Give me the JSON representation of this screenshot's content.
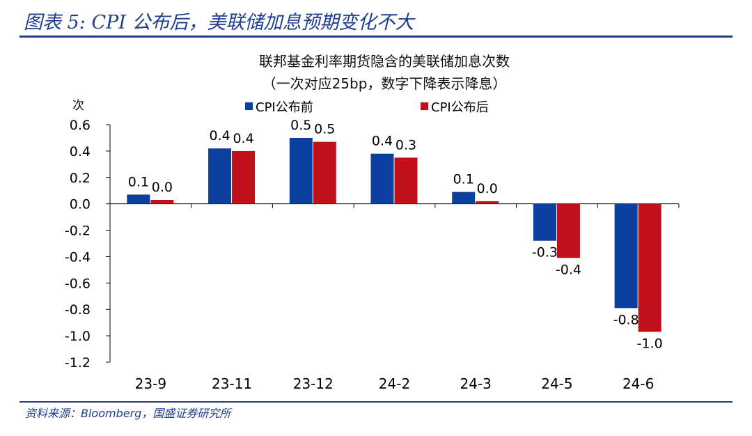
{
  "figure_title": "图表 5: CPI 公布后，美联储加息预期变化不大",
  "source_note": "资料来源：Bloomberg，国盛证券研究所",
  "chart_data": {
    "type": "bar",
    "title_line1": "联邦基金利率期货隐含的美联储加息次数",
    "title_line2": "（一次对应25bp，数字下降表示降息）",
    "ylabel": "次",
    "xlabel": "",
    "categories": [
      "23-9",
      "23-11",
      "23-12",
      "24-2",
      "24-3",
      "24-5",
      "24-6"
    ],
    "series": [
      {
        "name": "CPI公布前",
        "color": "#0b3fa0",
        "values": [
          0.07,
          0.42,
          0.5,
          0.38,
          0.09,
          -0.28,
          -0.79
        ],
        "labels": [
          "0.1",
          "0.4",
          "0.5",
          "0.4",
          "0.1",
          "-0.3",
          "-0.8"
        ]
      },
      {
        "name": "CPI公布后",
        "color": "#c0101a",
        "values": [
          0.03,
          0.4,
          0.47,
          0.35,
          0.02,
          -0.41,
          -0.97
        ],
        "labels": [
          "0.0",
          "0.4",
          "0.5",
          "0.3",
          "0.0",
          "-0.4",
          "-1.0"
        ]
      }
    ],
    "ylim": [
      -1.2,
      0.6
    ],
    "yticks": [
      "0.6",
      "0.4",
      "0.2",
      "0.0",
      "-0.2",
      "-0.4",
      "-0.6",
      "-0.8",
      "-1.0",
      "-1.2"
    ],
    "legend_position": "top"
  }
}
